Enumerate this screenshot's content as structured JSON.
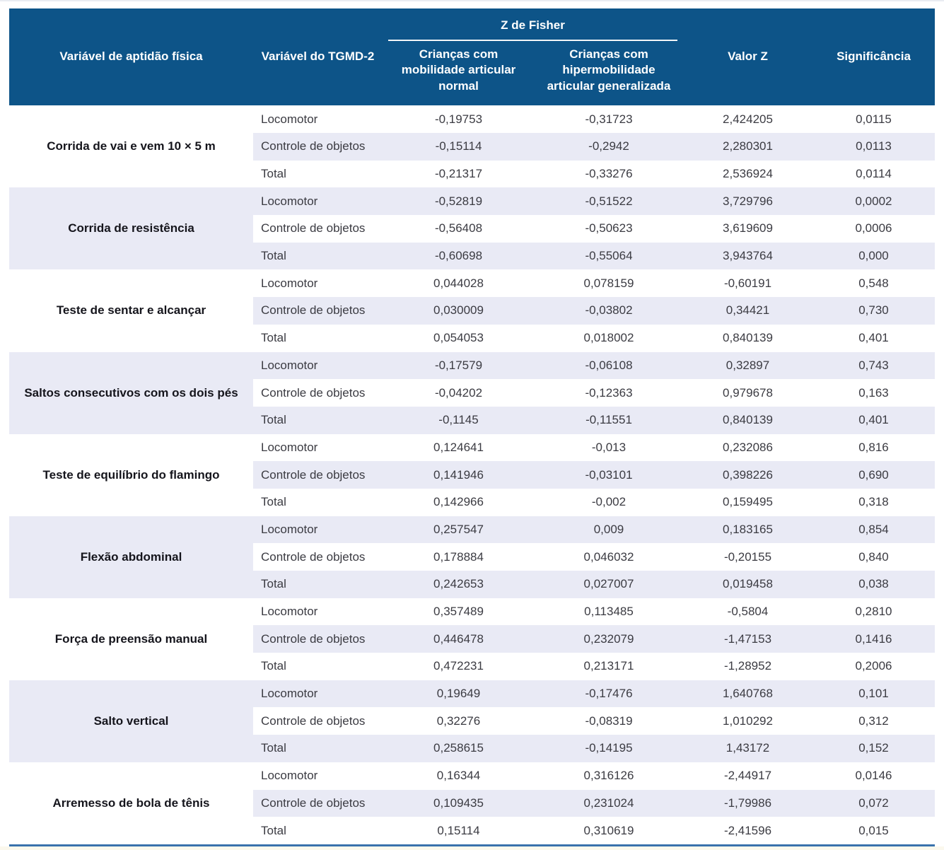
{
  "colors": {
    "header_bg": "#0d5488",
    "stripe_lavender": "#e9eaf5",
    "bottom_rule_blue": "#3a72ac",
    "footer_strip_cream": "#fbf8ed",
    "header_text": "#ffffff",
    "body_text": "#3b3b42"
  },
  "chart_data": {
    "type": "table",
    "headers": {
      "fitness": "Variável de aptidão física",
      "tgmd": "Variável do TGMD-2",
      "fisher_group": "Z de Fisher",
      "normal": "Crianças com mobilidade articular normal",
      "hyper": "Crianças com hipermobilidade articular generalizada",
      "valor_z": "Valor Z",
      "significancia": "Significância"
    },
    "groups": [
      {
        "variable": "Corrida de vai e vem 10 × 5 m",
        "rows": [
          {
            "tgmd": "Locomotor",
            "normal": "-0,19753",
            "hyper": "-0,31723",
            "z": "2,424205",
            "sig": "0,0115"
          },
          {
            "tgmd": "Controle de objetos",
            "normal": "-0,15114",
            "hyper": "-0,2942",
            "z": "2,280301",
            "sig": "0,0113"
          },
          {
            "tgmd": "Total",
            "normal": "-0,21317",
            "hyper": "-0,33276",
            "z": "2,536924",
            "sig": "0,0114"
          }
        ]
      },
      {
        "variable": "Corrida de resistência",
        "rows": [
          {
            "tgmd": "Locomotor",
            "normal": "-0,52819",
            "hyper": "-0,51522",
            "z": "3,729796",
            "sig": "0,0002"
          },
          {
            "tgmd": "Controle de objetos",
            "normal": "-0,56408",
            "hyper": "-0,50623",
            "z": "3,619609",
            "sig": "0,0006"
          },
          {
            "tgmd": "Total",
            "normal": "-0,60698",
            "hyper": "-0,55064",
            "z": "3,943764",
            "sig": "0,000"
          }
        ]
      },
      {
        "variable": "Teste de sentar e alcançar",
        "rows": [
          {
            "tgmd": "Locomotor",
            "normal": "0,044028",
            "hyper": "0,078159",
            "z": "-0,60191",
            "sig": "0,548"
          },
          {
            "tgmd": "Controle de objetos",
            "normal": "0,030009",
            "hyper": "-0,03802",
            "z": "0,34421",
            "sig": "0,730"
          },
          {
            "tgmd": "Total",
            "normal": "0,054053",
            "hyper": "0,018002",
            "z": "0,840139",
            "sig": "0,401"
          }
        ]
      },
      {
        "variable": "Saltos consecutivos com os dois pés",
        "rows": [
          {
            "tgmd": "Locomotor",
            "normal": "-0,17579",
            "hyper": "-0,06108",
            "z": "0,32897",
            "sig": "0,743"
          },
          {
            "tgmd": "Controle de objetos",
            "normal": "-0,04202",
            "hyper": "-0,12363",
            "z": "0,979678",
            "sig": "0,163"
          },
          {
            "tgmd": "Total",
            "normal": "-0,1145",
            "hyper": "-0,11551",
            "z": "0,840139",
            "sig": "0,401"
          }
        ]
      },
      {
        "variable": "Teste de equilíbrio do flamingo",
        "rows": [
          {
            "tgmd": "Locomotor",
            "normal": "0,124641",
            "hyper": "-0,013",
            "z": "0,232086",
            "sig": "0,816"
          },
          {
            "tgmd": "Controle de objetos",
            "normal": "0,141946",
            "hyper": "-0,03101",
            "z": "0,398226",
            "sig": "0,690"
          },
          {
            "tgmd": "Total",
            "normal": "0,142966",
            "hyper": "-0,002",
            "z": "0,159495",
            "sig": "0,318"
          }
        ]
      },
      {
        "variable": "Flexão abdominal",
        "rows": [
          {
            "tgmd": "Locomotor",
            "normal": "0,257547",
            "hyper": "0,009",
            "z": "0,183165",
            "sig": "0,854"
          },
          {
            "tgmd": "Controle de objetos",
            "normal": "0,178884",
            "hyper": "0,046032",
            "z": "-0,20155",
            "sig": "0,840"
          },
          {
            "tgmd": "Total",
            "normal": "0,242653",
            "hyper": "0,027007",
            "z": "0,019458",
            "sig": "0,038"
          }
        ]
      },
      {
        "variable": "Força de preensão manual",
        "rows": [
          {
            "tgmd": "Locomotor",
            "normal": "0,357489",
            "hyper": "0,113485",
            "z": "-0,5804",
            "sig": "0,2810"
          },
          {
            "tgmd": "Controle de objetos",
            "normal": "0,446478",
            "hyper": "0,232079",
            "z": "-1,47153",
            "sig": "0,1416"
          },
          {
            "tgmd": "Total",
            "normal": "0,472231",
            "hyper": "0,213171",
            "z": "-1,28952",
            "sig": "0,2006"
          }
        ]
      },
      {
        "variable": "Salto vertical",
        "rows": [
          {
            "tgmd": "Locomotor",
            "normal": "0,19649",
            "hyper": "-0,17476",
            "z": "1,640768",
            "sig": "0,101"
          },
          {
            "tgmd": "Controle de objetos",
            "normal": "0,32276",
            "hyper": "-0,08319",
            "z": "1,010292",
            "sig": "0,312"
          },
          {
            "tgmd": "Total",
            "normal": "0,258615",
            "hyper": "-0,14195",
            "z": "1,43172",
            "sig": "0,152"
          }
        ]
      },
      {
        "variable": "Arremesso de bola de tênis",
        "rows": [
          {
            "tgmd": "Locomotor",
            "normal": "0,16344",
            "hyper": "0,316126",
            "z": "-2,44917",
            "sig": "0,0146"
          },
          {
            "tgmd": "Controle de objetos",
            "normal": "0,109435",
            "hyper": "0,231024",
            "z": "-1,79986",
            "sig": "0,072"
          },
          {
            "tgmd": "Total",
            "normal": "0,15114",
            "hyper": "0,310619",
            "z": "-2,41596",
            "sig": "0,015"
          }
        ]
      }
    ]
  }
}
